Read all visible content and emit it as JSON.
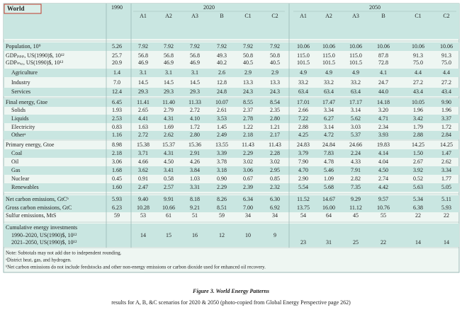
{
  "header": {
    "title": "World"
  },
  "table": {
    "years": [
      {
        "label": "1990",
        "scenarios": []
      },
      {
        "label": "2020",
        "scenarios": [
          "A1",
          "A2",
          "A3",
          "B",
          "C1",
          "C2"
        ]
      },
      {
        "label": "2050",
        "scenarios": [
          "A1",
          "A2",
          "A3",
          "B",
          "C1",
          "C2"
        ]
      }
    ],
    "rows": [
      {
        "label": "Population, 10⁹",
        "values": [
          "5.26",
          "7.92",
          "7.92",
          "7.92",
          "7.92",
          "7.92",
          "7.92",
          "10.06",
          "10.06",
          "10.06",
          "10.06",
          "10.06",
          "10.06"
        ]
      },
      {
        "label": "GDPₚₚₚ, US(1990)$, 10¹²",
        "values": [
          "25.7",
          "56.8",
          "56.8",
          "56.8",
          "49.3",
          "50.8",
          "50.8",
          "115.0",
          "115.0",
          "115.0",
          "87.8",
          "91.3",
          "91.3"
        ]
      },
      {
        "label": "GDPₘₑᵣ, US(1990)$, 10¹²",
        "values": [
          "20.9",
          "46.9",
          "46.9",
          "46.9",
          "40.2",
          "40.5",
          "40.5",
          "101.5",
          "101.5",
          "101.5",
          "72.8",
          "75.0",
          "75.0"
        ]
      },
      {
        "label": "Agriculture",
        "indent": true,
        "values": [
          "1.4",
          "3.1",
          "3.1",
          "3.1",
          "2.6",
          "2.9",
          "2.9",
          "4.9",
          "4.9",
          "4.9",
          "4.1",
          "4.4",
          "4.4"
        ]
      },
      {
        "label": "Industry",
        "indent": true,
        "values": [
          "7.0",
          "14.5",
          "14.5",
          "14.5",
          "12.8",
          "13.3",
          "13.3",
          "33.2",
          "33.2",
          "33.2",
          "24.7",
          "27.2",
          "27.2"
        ]
      },
      {
        "label": "Services",
        "indent": true,
        "values": [
          "12.4",
          "29.3",
          "29.3",
          "29.3",
          "24.8",
          "24.3",
          "24.3",
          "63.4",
          "63.4",
          "63.4",
          "44.0",
          "43.4",
          "43.4"
        ]
      },
      {
        "label": "Final energy, Gtoe",
        "values": [
          "6.45",
          "11.41",
          "11.40",
          "11.33",
          "10.07",
          "8.55",
          "8.54",
          "17.01",
          "17.47",
          "17.17",
          "14.18",
          "10.05",
          "9.90"
        ]
      },
      {
        "label": "Solids",
        "indent": true,
        "values": [
          "1.93",
          "2.65",
          "2.79",
          "2.72",
          "2.61",
          "2.37",
          "2.35",
          "2.66",
          "3.34",
          "3.14",
          "3.20",
          "1.96",
          "1.96"
        ]
      },
      {
        "label": "Liquids",
        "indent": true,
        "values": [
          "2.53",
          "4.41",
          "4.31",
          "4.10",
          "3.53",
          "2.78",
          "2.80",
          "7.22",
          "6.27",
          "5.62",
          "4.71",
          "3.42",
          "3.37"
        ]
      },
      {
        "label": "Electricity",
        "indent": true,
        "values": [
          "0.83",
          "1.63",
          "1.69",
          "1.72",
          "1.45",
          "1.22",
          "1.21",
          "2.88",
          "3.14",
          "3.03",
          "2.34",
          "1.79",
          "1.72"
        ]
      },
      {
        "label": "Otherᵃ",
        "indent": true,
        "values": [
          "1.16",
          "2.72",
          "2.62",
          "2.80",
          "2.49",
          "2.18",
          "2.17",
          "4.25",
          "4.72",
          "5.37",
          "3.93",
          "2.88",
          "2.84"
        ]
      },
      {
        "label": "Primary energy, Gtoe",
        "values": [
          "8.98",
          "15.38",
          "15.37",
          "15.36",
          "13.55",
          "11.43",
          "11.43",
          "24.83",
          "24.84",
          "24.66",
          "19.83",
          "14.25",
          "14.25"
        ]
      },
      {
        "label": "Coal",
        "indent": true,
        "values": [
          "2.18",
          "3.71",
          "4.31",
          "2.91",
          "3.39",
          "2.29",
          "2.28",
          "3.79",
          "7.83",
          "2.24",
          "4.14",
          "1.50",
          "1.47"
        ]
      },
      {
        "label": "Oil",
        "indent": true,
        "values": [
          "3.06",
          "4.66",
          "4.50",
          "4.26",
          "3.78",
          "3.02",
          "3.02",
          "7.90",
          "4.78",
          "4.33",
          "4.04",
          "2.67",
          "2.62"
        ]
      },
      {
        "label": "Gas",
        "indent": true,
        "values": [
          "1.68",
          "3.62",
          "3.41",
          "3.84",
          "3.18",
          "3.06",
          "2.95",
          "4.70",
          "5.46",
          "7.91",
          "4.50",
          "3.92",
          "3.34"
        ]
      },
      {
        "label": "Nuclear",
        "indent": true,
        "values": [
          "0.45",
          "0.91",
          "0.58",
          "1.03",
          "0.90",
          "0.67",
          "0.85",
          "2.90",
          "1.09",
          "2.82",
          "2.74",
          "0.52",
          "1.77"
        ]
      },
      {
        "label": "Renewables",
        "indent": true,
        "values": [
          "1.60",
          "2.47",
          "2.57",
          "3.31",
          "2.29",
          "2.39",
          "2.32",
          "5.54",
          "5.68",
          "7.35",
          "4.42",
          "5.63",
          "5.05"
        ]
      },
      {
        "label": "Net carbon emissions, GtCᵇ",
        "values": [
          "5.93",
          "9.40",
          "9.91",
          "8.18",
          "8.26",
          "6.34",
          "6.30",
          "11.52",
          "14.67",
          "9.29",
          "9.57",
          "5.34",
          "5.11"
        ]
      },
      {
        "label": "Gross carbon emissions, GtC",
        "values": [
          "6.23",
          "10.28",
          "10.66",
          "9.21",
          "8.51",
          "7.00",
          "6.92",
          "13.75",
          "16.00",
          "11.12",
          "10.76",
          "6.38",
          "5.93"
        ]
      },
      {
        "label": "Sulfur emissions, MtS",
        "values": [
          "59",
          "53",
          "61",
          "51",
          "59",
          "34",
          "34",
          "54",
          "64",
          "45",
          "55",
          "22",
          "22"
        ]
      },
      {
        "label": "Cumulative energy investments"
      },
      {
        "label": "1990–2020, US(1990)$, 10¹²",
        "indent": true,
        "values": [
          null,
          "14",
          "15",
          "16",
          "12",
          "10",
          "9",
          null,
          null,
          null,
          null,
          null,
          null
        ]
      },
      {
        "label": "2021–2050, US(1990)$, 10¹²",
        "indent": true,
        "values": [
          null,
          null,
          null,
          null,
          null,
          null,
          null,
          "23",
          "31",
          "25",
          "22",
          "14",
          "14"
        ]
      }
    ],
    "notes": [
      "Note: Subtotals may not add due to independent rounding.",
      "ᵃDistrict heat, gas, and hydrogen.",
      "ᵇNet carbon emissions do not include feedstocks and other non-energy emissions or carbon dioxide used for enhanced oil recovery."
    ]
  },
  "caption": {
    "title": "Figure 3. World Energy Patterns",
    "text": "results for A, B, &C scenarios for 2020 & 2050 (photo-copied from Global Energy Perspective page 262)"
  }
}
